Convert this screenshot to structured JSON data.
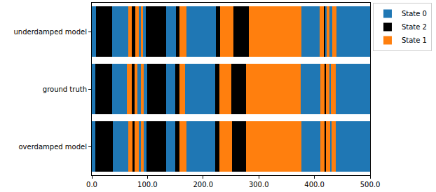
{
  "chart_data": {
    "type": "bar",
    "orientation": "horizontal",
    "stacked": true,
    "categories": [
      "underdamped model",
      "ground truth",
      "overdamped model"
    ],
    "series": [
      {
        "name": "State 0",
        "color": "#1f77b4"
      },
      {
        "name": "State 2",
        "color": "#000000"
      },
      {
        "name": "State 1",
        "color": "#ff7f0e"
      }
    ],
    "segments": [
      {
        "states": [
          "State 0",
          "State 2",
          "State 0",
          "State 1",
          "State 2",
          "State 1",
          "State 0",
          "State 1",
          "State 0",
          "State 2",
          "State 0",
          "State 2",
          "State 1",
          "State 0",
          "State 2",
          "State 1",
          "State 2",
          "State 1",
          "State 0",
          "State 1",
          "State 2",
          "State 0",
          "State 1",
          "State 0",
          "State 1",
          "State 0"
        ],
        "lengths": [
          7,
          30,
          28,
          7,
          6,
          6,
          4,
          4,
          5,
          37,
          17,
          6,
          13,
          53,
          8,
          24,
          27,
          94,
          33,
          8,
          3,
          2,
          5,
          5,
          8,
          60
        ]
      },
      {
        "states": [
          "State 0",
          "State 2",
          "State 0",
          "State 1",
          "State 2",
          "State 1",
          "State 0",
          "State 1",
          "State 0",
          "State 2",
          "State 0",
          "State 2",
          "State 1",
          "State 0",
          "State 2",
          "State 1",
          "State 2",
          "State 1",
          "State 0",
          "State 1",
          "State 2",
          "State 1",
          "State 0",
          "State 1",
          "State 0"
        ],
        "lengths": [
          6,
          30,
          27,
          9,
          5,
          5,
          6,
          5,
          6,
          34,
          17,
          8,
          10,
          54,
          7,
          21,
          27,
          98,
          35,
          8,
          3,
          6,
          3,
          8,
          62
        ]
      },
      {
        "states": [
          "State 0",
          "State 2",
          "State 0",
          "State 1",
          "State 2",
          "State 1",
          "State 0",
          "State 1",
          "State 0",
          "State 2",
          "State 0",
          "State 2",
          "State 1",
          "State 0",
          "State 2",
          "State 1",
          "State 2",
          "State 1",
          "State 0",
          "State 1",
          "State 2",
          "State 1",
          "State 0",
          "State 1",
          "State 0"
        ],
        "lengths": [
          6,
          32,
          27,
          8,
          4,
          7,
          4,
          5,
          5,
          36,
          16,
          8,
          12,
          52,
          7,
          23,
          25,
          99,
          35,
          7,
          3,
          7,
          3,
          7,
          62
        ]
      }
    ],
    "xlim": [
      0,
      500
    ],
    "xticks": [
      {
        "value": 0,
        "label": "0.0"
      },
      {
        "value": 100,
        "label": "100.0"
      },
      {
        "value": 200,
        "label": "200.0"
      },
      {
        "value": 300,
        "label": "300.0"
      },
      {
        "value": 400,
        "label": "400.0"
      },
      {
        "value": 500,
        "label": "500.0"
      }
    ],
    "grid": false,
    "legend": "right"
  }
}
